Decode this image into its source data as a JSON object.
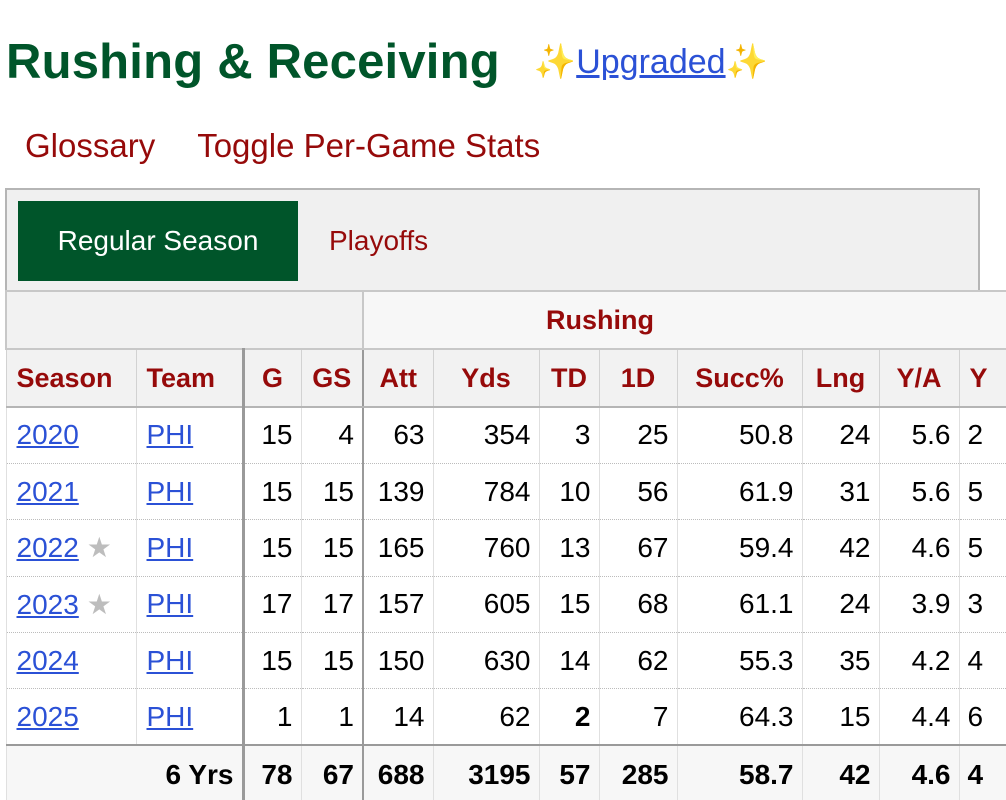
{
  "header": {
    "title": "Rushing & Receiving",
    "sparkle_left": "✨",
    "upgraded_label": "Upgraded",
    "sparkle_right": "✨"
  },
  "links": {
    "glossary": "Glossary",
    "toggle": "Toggle Per-Game Stats"
  },
  "tabs": {
    "regular": "Regular Season",
    "playoffs": "Playoffs"
  },
  "table": {
    "group_header": "Rushing",
    "columns": [
      "Season",
      "Team",
      "G",
      "GS",
      "Att",
      "Yds",
      "TD",
      "1D",
      "Succ%",
      "Lng",
      "Y/A",
      "Y"
    ],
    "rows": [
      {
        "season": "2020",
        "star": "",
        "team": "PHI",
        "g": "15",
        "gs": "4",
        "att": "63",
        "yds": "354",
        "td": "3",
        "fd": "25",
        "succ": "50.8",
        "lng": "24",
        "ya": "5.6",
        "next": "2"
      },
      {
        "season": "2021",
        "star": "",
        "team": "PHI",
        "g": "15",
        "gs": "15",
        "att": "139",
        "yds": "784",
        "td": "10",
        "fd": "56",
        "succ": "61.9",
        "lng": "31",
        "ya": "5.6",
        "next": "5"
      },
      {
        "season": "2022",
        "star": "★",
        "team": "PHI",
        "g": "15",
        "gs": "15",
        "att": "165",
        "yds": "760",
        "td": "13",
        "fd": "67",
        "succ": "59.4",
        "lng": "42",
        "ya": "4.6",
        "next": "5"
      },
      {
        "season": "2023",
        "star": "★",
        "team": "PHI",
        "g": "17",
        "gs": "17",
        "att": "157",
        "yds": "605",
        "td": "15",
        "fd": "68",
        "succ": "61.1",
        "lng": "24",
        "ya": "3.9",
        "next": "3"
      },
      {
        "season": "2024",
        "star": "",
        "team": "PHI",
        "g": "15",
        "gs": "15",
        "att": "150",
        "yds": "630",
        "td": "14",
        "fd": "62",
        "succ": "55.3",
        "lng": "35",
        "ya": "4.2",
        "next": "4"
      },
      {
        "season": "2025",
        "star": "",
        "team": "PHI",
        "g": "1",
        "gs": "1",
        "att": "14",
        "yds": "62",
        "td": "2",
        "fd": "7",
        "succ": "64.3",
        "lng": "15",
        "ya": "4.4",
        "next": "6"
      }
    ],
    "totals": {
      "label": "6 Yrs",
      "g": "78",
      "gs": "67",
      "att": "688",
      "yds": "3195",
      "td": "57",
      "fd": "285",
      "succ": "58.7",
      "lng": "42",
      "ya": "4.6",
      "next": "4"
    }
  },
  "colors": {
    "title_green": "#00552a",
    "link_red": "#960a0a",
    "link_blue": "#2b51d6",
    "tab_active_bg": "#00552a"
  }
}
